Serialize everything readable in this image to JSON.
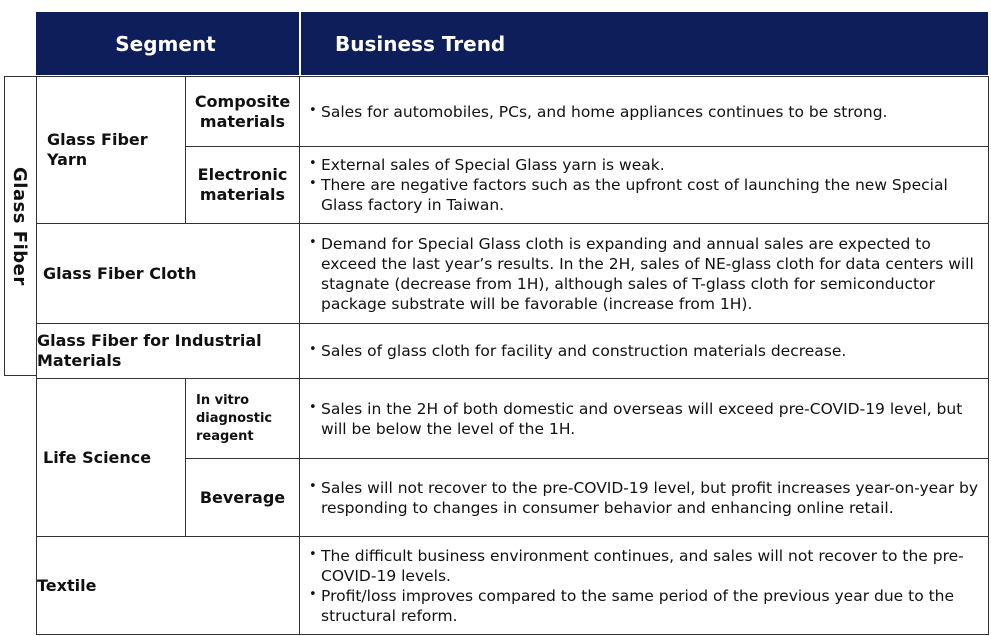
{
  "header": {
    "segment": "Segment",
    "business_trend": "Business Trend"
  },
  "side_group_label": "Glass Fiber",
  "rows": {
    "glass_fiber_yarn": {
      "segment": "Glass Fiber Yarn",
      "composite": {
        "label_line1": "Composite",
        "label_line2": "materials",
        "trend": [
          "Sales for automobiles, PCs, and home appliances continues to be strong."
        ]
      },
      "electronic": {
        "label_line1": "Electronic",
        "label_line2": "materials",
        "trend": [
          "External sales of Special Glass yarn is weak.",
          "There are negative factors such as the upfront cost of launching the new Special Glass factory in Taiwan."
        ]
      }
    },
    "glass_fiber_cloth": {
      "segment": "Glass Fiber Cloth",
      "trend": [
        "Demand for Special Glass cloth is expanding and annual sales are expected to exceed the last year’s results. In the 2H, sales of NE-glass cloth for data centers will stagnate (decrease from 1H), although sales of T-glass cloth for semiconductor package substrate will be favorable (increase from 1H)."
      ]
    },
    "industrial": {
      "segment_line1": "Glass Fiber for Industrial",
      "segment_line2": "Materials",
      "trend": [
        "Sales of glass cloth for facility and construction materials decrease."
      ]
    },
    "life_science": {
      "segment": "Life Science",
      "ivd": {
        "label_line1": "In vitro",
        "label_line2": "diagnostic",
        "label_line3": "reagent",
        "trend": [
          "Sales in the 2H of both domestic and overseas will exceed pre-COVID-19 level, but will be below the level of the 1H."
        ]
      },
      "beverage": {
        "label": "Beverage",
        "trend": [
          "Sales will not recover to the pre-COVID-19 level, but profit increases year-on-year by responding to changes in consumer behavior and enhancing online retail."
        ]
      }
    },
    "textile": {
      "segment": "Textile",
      "trend": [
        "The difficult business environment continues, and sales will not recover to the pre-COVID-19 levels.",
        "Profit/loss improves compared to the same period of the previous year due to the structural reform."
      ]
    }
  }
}
